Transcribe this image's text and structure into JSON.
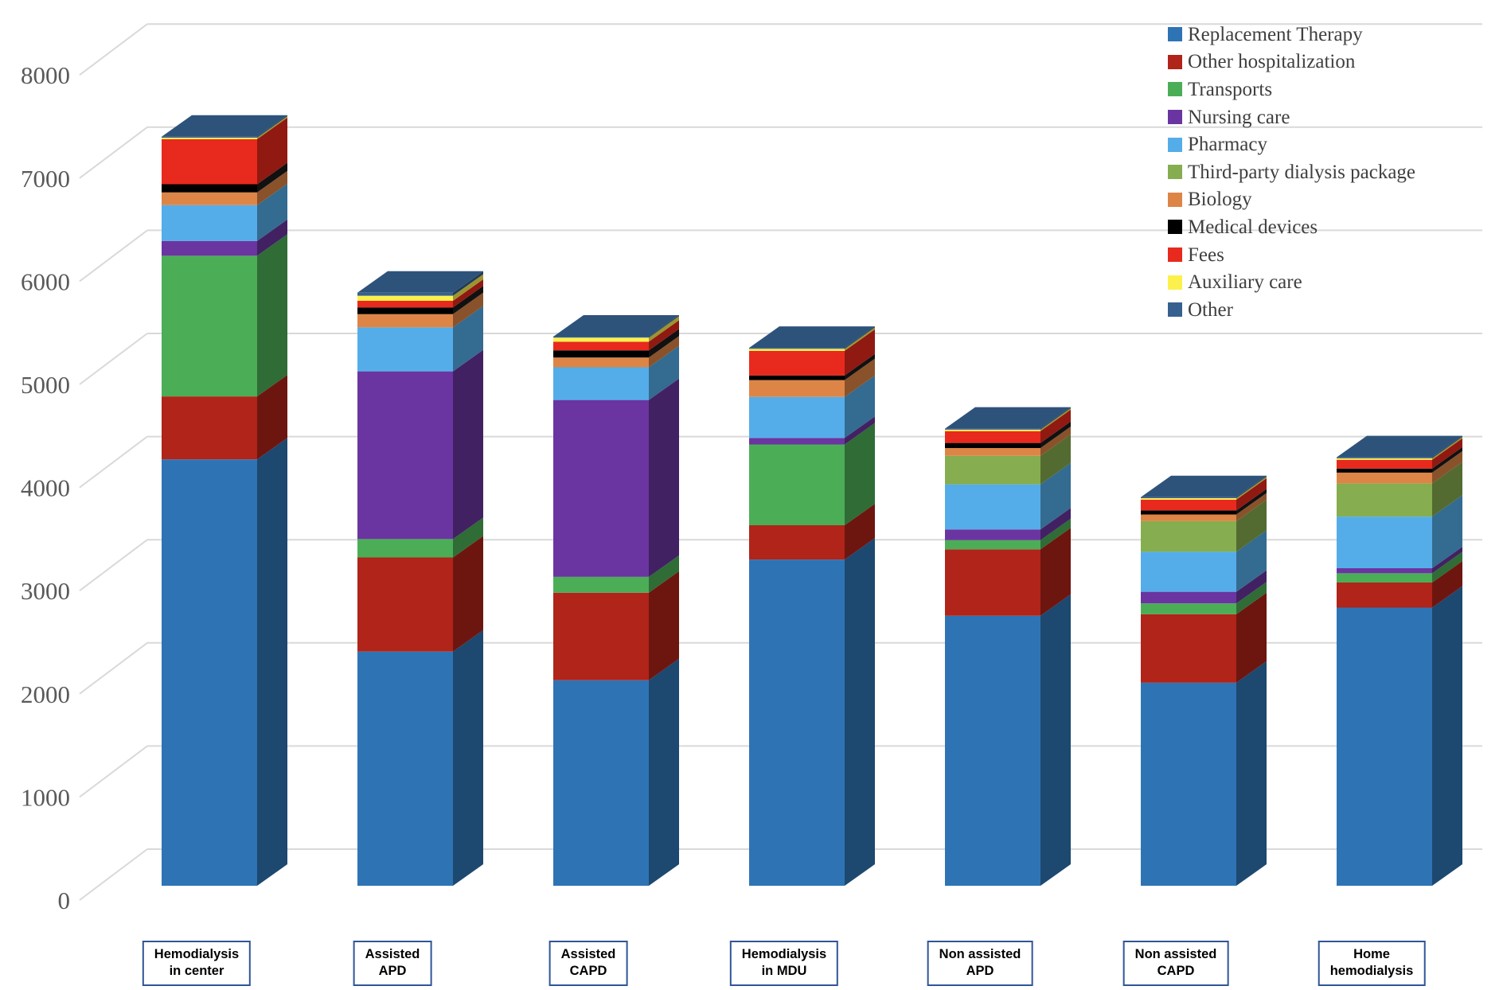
{
  "chart_data": {
    "type": "bar",
    "subtype": "3d-stacked-column",
    "title": "",
    "xlabel": "",
    "ylabel": "",
    "ylim": [
      0,
      8500
    ],
    "y_ticks": [
      0,
      1000,
      2000,
      3000,
      4000,
      5000,
      6000,
      7000,
      8000
    ],
    "grid": true,
    "legend_position": "top-right",
    "categories": [
      [
        "Hemodialysis",
        "in center"
      ],
      [
        "Assisted",
        "APD"
      ],
      [
        "Assisted",
        "CAPD"
      ],
      [
        "Hemodialysis",
        "in MDU"
      ],
      [
        "Non assisted",
        "APD"
      ],
      [
        "Non assisted",
        "CAPD"
      ],
      [
        "Home",
        "hemodialysis"
      ]
    ],
    "series": [
      {
        "name": "Replacement Therapy",
        "color": "#2E74B5",
        "values": [
          4170,
          2290,
          2010,
          3190,
          2640,
          1985,
          2720
        ]
      },
      {
        "name": "Other hospitalization",
        "color": "#B02419",
        "values": [
          615,
          920,
          855,
          335,
          650,
          670,
          245
        ]
      },
      {
        "name": "Transports",
        "color": "#4BAE57",
        "values": [
          1375,
          180,
          155,
          790,
          90,
          105,
          90
        ]
      },
      {
        "name": "Nursing care",
        "color": "#6A35A0",
        "values": [
          145,
          1640,
          1730,
          65,
          105,
          115,
          50
        ]
      },
      {
        "name": "Pharmacy",
        "color": "#54ADE9",
        "values": [
          350,
          430,
          320,
          400,
          440,
          390,
          505
        ]
      },
      {
        "name": "Third-party dialysis package",
        "color": "#86AD4F",
        "values": [
          0,
          0,
          0,
          0,
          280,
          300,
          325
        ]
      },
      {
        "name": "Biology",
        "color": "#DD8546",
        "values": [
          125,
          130,
          95,
          165,
          75,
          65,
          105
        ]
      },
      {
        "name": "Medical devices",
        "color": "#000000",
        "values": [
          80,
          65,
          70,
          45,
          50,
          40,
          40
        ]
      },
      {
        "name": "Fees",
        "color": "#E8291D",
        "values": [
          440,
          65,
          85,
          240,
          115,
          105,
          85
        ]
      },
      {
        "name": "Auxiliary care",
        "color": "#FCF14C",
        "values": [
          15,
          50,
          40,
          20,
          15,
          15,
          15
        ]
      },
      {
        "name": "Other",
        "color": "#36618F",
        "values": [
          10,
          30,
          10,
          10,
          10,
          10,
          10
        ]
      }
    ],
    "totals": [
      7325,
      5800,
      5370,
      5260,
      4470,
      3800,
      4190
    ]
  },
  "style_data": {
    "gridline_color": "#D9D9D9",
    "tick_label_color": "#595959",
    "legend_text_color": "#3F3F3F",
    "category_box_border_color": "#2F5597"
  }
}
